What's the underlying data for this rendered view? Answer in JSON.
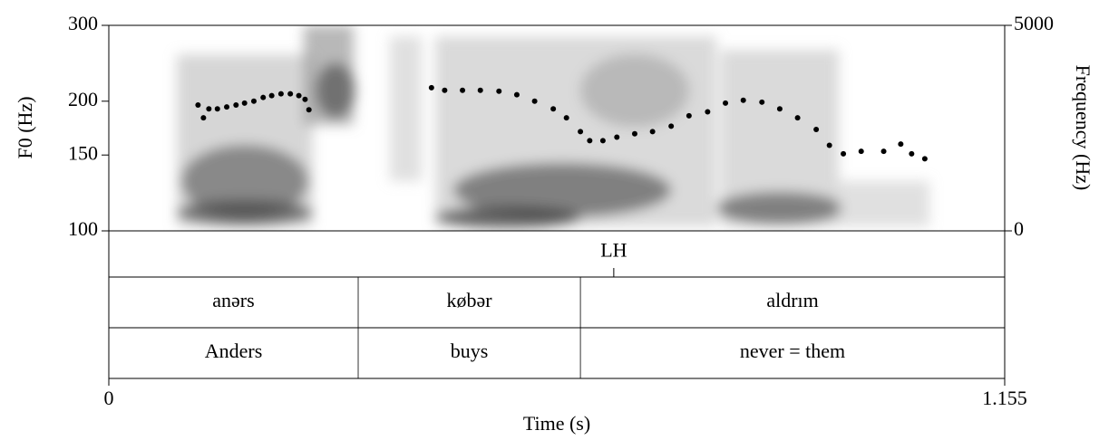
{
  "chart_data": {
    "type": "scatter",
    "ylabel": "F0 (Hz)",
    "y2label": "Frequency (Hz)",
    "xlabel": "Time (s)",
    "x": [
      0.115,
      0.122,
      0.129,
      0.14,
      0.152,
      0.164,
      0.175,
      0.187,
      0.199,
      0.21,
      0.222,
      0.234,
      0.245,
      0.253,
      0.258,
      null,
      0.416,
      0.433,
      0.456,
      0.479,
      0.503,
      0.526,
      0.549,
      0.573,
      0.59,
      0.608,
      0.62,
      0.637,
      0.655,
      0.678,
      0.701,
      0.725,
      0.748,
      0.772,
      0.795,
      0.818,
      0.842,
      0.865,
      0.888,
      0.912,
      0.929,
      0.947,
      0.97,
      0.999,
      1.021,
      1.035,
      1.052
    ],
    "series": [
      {
        "color": "#000000",
        "values": [
          196,
          183,
          192,
          192,
          194,
          196,
          198,
          200,
          204,
          206,
          208,
          208,
          206,
          202,
          191,
          null,
          215,
          212,
          212,
          212,
          211,
          207,
          200,
          192,
          183,
          170,
          162,
          162,
          165,
          168,
          170,
          175,
          185,
          189,
          198,
          201,
          199,
          192,
          183,
          172,
          158,
          151,
          153,
          153,
          159,
          151,
          147
        ]
      }
    ],
    "log_y": true,
    "ylim": [
      100,
      300
    ],
    "yticks": [
      100,
      150,
      200,
      300
    ],
    "y2lim": [
      0,
      5000
    ],
    "y2ticks": [
      0,
      5000
    ],
    "xlim": [
      0,
      1.155
    ],
    "xticks": [
      0,
      1.155
    ],
    "tiers": [
      {
        "points": [
          0.651
        ],
        "labels": [
          "LH"
        ]
      },
      {
        "boundaries": [
          0.3215,
          0.608
        ],
        "labels": [
          "anərs",
          "købər",
          "aldrım"
        ]
      },
      {
        "boundaries": [
          0.3215,
          0.608
        ],
        "labels": [
          "Anders",
          "buys",
          "never = them"
        ]
      }
    ]
  }
}
